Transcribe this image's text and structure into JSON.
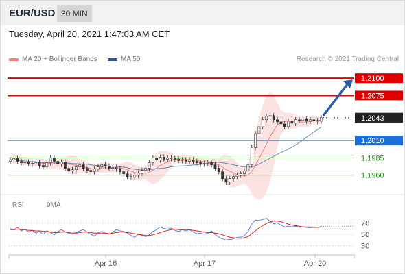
{
  "header": {
    "pair": "EUR/USD",
    "timeframe": "30 MIN",
    "timestamp": "Tuesday, April 20, 2021 1:47:03 AM CET"
  },
  "legend": {
    "ma20_label": "MA 20 + Bollinger Bands",
    "ma50_label": "MA 50",
    "ma20_color": "#f08080",
    "ma50_color": "#2a5a9a",
    "copyright": "Research © 2021 Trading Central"
  },
  "rsi_legend": {
    "rsi_label": "RSI",
    "ma_label": "9MA",
    "rsi_color": "#5b7fd6",
    "ma_color": "#e02020"
  },
  "chart_data": {
    "type": "candlestick",
    "y_range": [
      1.1935,
      1.2115
    ],
    "x_ticks": [
      "Apr 16",
      "Apr 17",
      "Apr 20"
    ],
    "current_price": "1.2043",
    "levels": [
      {
        "label": "1.2100",
        "value": 1.21,
        "kind": "resistance",
        "color": "#e00000"
      },
      {
        "label": "1.2075",
        "value": 1.2075,
        "kind": "resistance",
        "color": "#e00000"
      },
      {
        "label": "1.2043",
        "value": 1.2043,
        "kind": "current",
        "color": "#222222"
      },
      {
        "label": "1.2010",
        "value": 1.201,
        "kind": "pivot",
        "color": "#1a6fd8"
      },
      {
        "label": "1.1985",
        "value": 1.1985,
        "kind": "support",
        "color": "#2e8b22"
      },
      {
        "label": "1.1960",
        "value": 1.196,
        "kind": "support",
        "color": "#2e8b22"
      }
    ],
    "close_series": [
      1.1982,
      1.1984,
      1.198,
      1.1978,
      1.1979,
      1.1977,
      1.1976,
      1.1978,
      1.1974,
      1.1972,
      1.1978,
      1.1985,
      1.198,
      1.1976,
      1.1979,
      1.197,
      1.1966,
      1.1968,
      1.1972,
      1.1975,
      1.197,
      1.1967,
      1.1965,
      1.1969,
      1.1972,
      1.1975,
      1.1973,
      1.197,
      1.1971,
      1.1969,
      1.1965,
      1.1962,
      1.1958,
      1.1957,
      1.196,
      1.1963,
      1.1967,
      1.197,
      1.1978,
      1.1985,
      1.1982,
      1.1986,
      1.1983,
      1.1985,
      1.1984,
      1.1983,
      1.1981,
      1.1982,
      1.198,
      1.1982,
      1.198,
      1.1978,
      1.1976,
      1.1977,
      1.1978,
      1.1975,
      1.197,
      1.1965,
      1.1955,
      1.195,
      1.1955,
      1.1958,
      1.196,
      1.1962,
      1.1966,
      1.1975,
      1.2,
      1.202,
      1.203,
      1.204,
      1.2045,
      1.2046,
      1.204,
      1.2037,
      1.2034,
      1.203,
      1.2038,
      1.2035,
      1.204,
      1.2039,
      1.2041,
      1.2038,
      1.204,
      1.2039,
      1.2038,
      1.2043
    ],
    "forecast_target": 1.21,
    "rsi": {
      "levels": [
        70,
        50,
        30
      ],
      "range": [
        20,
        80
      ],
      "values": [
        60,
        58,
        62,
        56,
        59,
        54,
        57,
        52,
        55,
        50,
        56,
        53,
        49,
        55,
        58,
        54,
        52,
        50,
        53,
        56,
        58,
        54,
        50,
        47,
        53,
        55,
        52,
        50,
        54,
        58,
        56,
        55,
        52,
        48,
        45,
        50,
        48,
        46,
        49,
        55,
        58,
        63,
        60,
        59,
        61,
        57,
        55,
        58,
        56,
        58,
        54,
        51,
        52,
        50,
        52,
        56,
        50,
        45,
        42,
        40,
        41,
        42,
        45,
        45,
        48,
        55,
        68,
        75,
        74,
        76,
        78,
        73,
        68,
        70,
        66,
        63,
        64,
        63,
        64,
        62,
        63,
        62,
        61,
        63,
        62,
        64
      ],
      "ma_values": [
        58,
        58,
        59,
        58,
        58,
        57,
        57,
        56,
        56,
        55,
        55,
        54,
        53,
        53,
        54,
        54,
        53,
        52,
        52,
        53,
        54,
        54,
        53,
        52,
        52,
        52,
        52,
        51,
        52,
        53,
        54,
        54,
        53,
        52,
        51,
        50,
        49,
        48,
        48,
        49,
        51,
        53,
        55,
        57,
        58,
        59,
        58,
        58,
        58,
        58,
        57,
        56,
        55,
        54,
        53,
        53,
        52,
        51,
        49,
        47,
        45,
        44,
        43,
        43,
        44,
        46,
        51,
        56,
        61,
        65,
        69,
        72,
        73,
        73,
        72,
        70,
        68,
        66,
        65,
        64,
        63,
        63,
        63,
        62,
        62,
        63
      ]
    }
  }
}
